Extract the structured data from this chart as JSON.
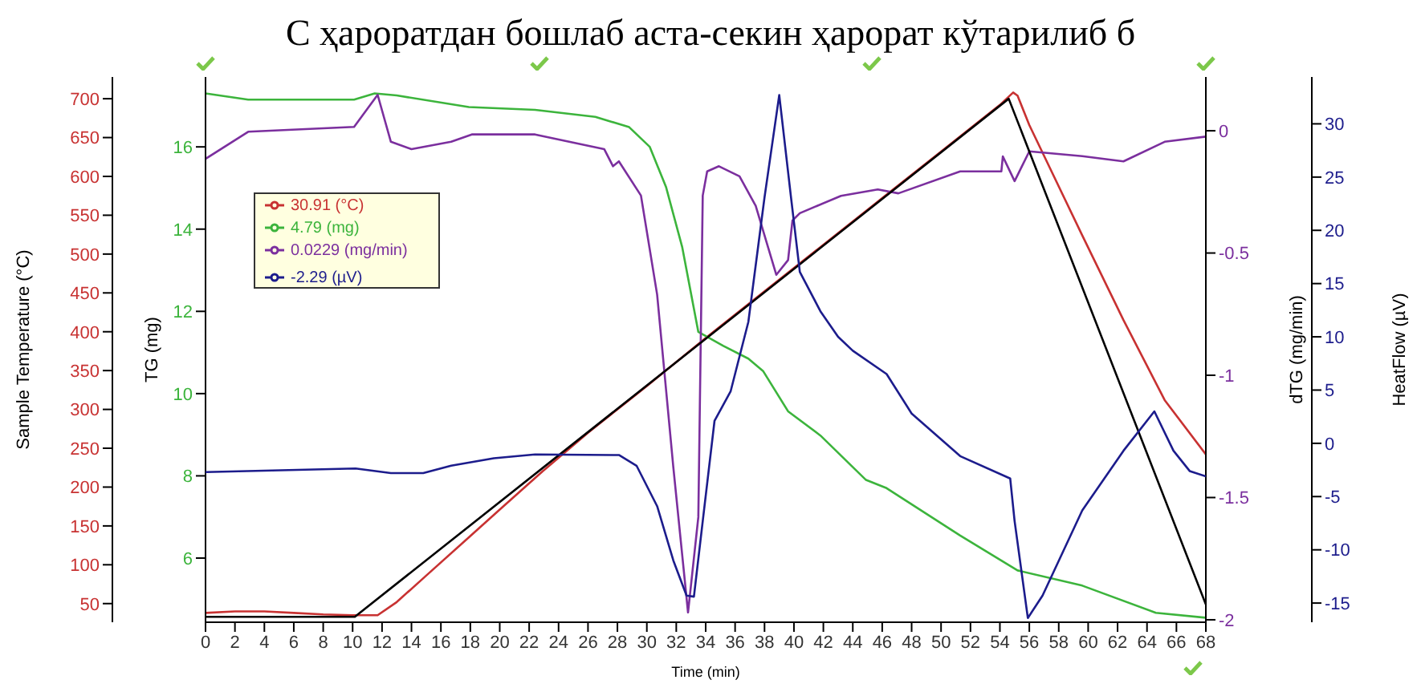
{
  "chart_data": [
    {
      "type": "line",
      "title": "С ҳароратдан бошлаб аста-секин ҳарорат кўтарилиб б",
      "xlabel": "Time (min)",
      "ylabel": "Sample Temperature (°C)",
      "y2label": "TG (mg)",
      "y3label": "dTG (mg/min)",
      "xlim": [
        0,
        68
      ],
      "xticks": [
        0,
        2,
        4,
        6,
        8,
        10,
        12,
        14,
        16,
        18,
        20,
        22,
        24,
        26,
        28,
        30,
        32,
        34,
        36,
        38,
        40,
        42,
        44,
        46,
        48,
        50,
        52,
        54,
        56,
        58,
        60,
        62,
        64,
        66,
        68
      ],
      "ylim": [
        26,
        728
      ],
      "yticks": [
        50,
        100,
        150,
        200,
        250,
        300,
        350,
        400,
        450,
        500,
        550,
        600,
        650,
        700
      ],
      "y2lim": [
        4.44,
        17.7
      ],
      "y2ticks": [
        6,
        8,
        10,
        12,
        14,
        16
      ],
      "y3lim": [
        -2.01,
        0.22
      ],
      "y3ticks": [
        -2,
        -1.5,
        -1,
        -0.5,
        0
      ],
      "legend": "top left",
      "line_style": "solid",
      "grid": false,
      "series": [
        {
          "name": "30.91 (°C)",
          "color": "#c83232",
          "axis": "y",
          "x": [
            0,
            2,
            4,
            6,
            8,
            10,
            11.7,
            13,
            15,
            18,
            20,
            22.9,
            26,
            30,
            34,
            38,
            42,
            46,
            50,
            54,
            54.9,
            55.2,
            56,
            59.6,
            62.4,
            65.2,
            68
          ],
          "values": [
            38,
            40,
            40,
            38,
            36,
            35,
            35,
            52,
            86,
            137,
            171,
            220,
            270,
            330,
            392,
            452,
            512,
            572,
            632,
            692,
            708,
            704,
            666,
            524,
            415,
            312,
            242
          ]
        },
        {
          "name": "4.79 (mg)",
          "color": "#3cb43c",
          "axis": "y2",
          "x": [
            0,
            2.9,
            10.1,
            11.5,
            13,
            17.9,
            22.4,
            26.5,
            28.8,
            30.2,
            31.3,
            32.4,
            33.5,
            35.2,
            36.9,
            37.9,
            39.6,
            41.8,
            44.9,
            46.3,
            51.3,
            55.2,
            59.6,
            64.6,
            68
          ],
          "values": [
            17.3,
            17.15,
            17.15,
            17.3,
            17.25,
            16.97,
            16.9,
            16.73,
            16.48,
            16,
            15.03,
            13.57,
            11.5,
            11.16,
            10.85,
            10.55,
            9.57,
            8.98,
            7.9,
            7.7,
            6.55,
            5.7,
            5.33,
            4.67,
            4.55
          ]
        },
        {
          "name": "0.0229 (mg/min)",
          "color": "#7b2f9e",
          "axis": "y3",
          "x": [
            0,
            2.9,
            10.1,
            11.7,
            12.6,
            14,
            16.7,
            18.1,
            22.4,
            27.1,
            27.7,
            28.1,
            29.6,
            30.7,
            31.8,
            32.8,
            33.5,
            33.8,
            34.1,
            34.9,
            36.3,
            37.4,
            38.2,
            38.8,
            39.6,
            39.9,
            40.4,
            43.2,
            45.7,
            47.1,
            51.3,
            54.1,
            54.2,
            55,
            56,
            59.6,
            62.4,
            65.2,
            68
          ],
          "values": [
            -0.115,
            -0.004,
            0.016,
            0.147,
            -0.045,
            -0.075,
            -0.045,
            -0.015,
            -0.015,
            -0.075,
            -0.145,
            -0.125,
            -0.265,
            -0.67,
            -1.376,
            -1.97,
            -1.58,
            -0.265,
            -0.166,
            -0.145,
            -0.186,
            -0.307,
            -0.468,
            -0.589,
            -0.529,
            -0.367,
            -0.337,
            -0.266,
            -0.24,
            -0.256,
            -0.166,
            -0.166,
            -0.105,
            -0.206,
            -0.084,
            -0.104,
            -0.125,
            -0.045,
            -0.024
          ]
        },
        {
          "color": "#000000",
          "axis": "y",
          "x": [
            0,
            10.15,
            54.6,
            68
          ],
          "values": [
            33,
            33,
            700,
            49
          ]
        }
      ]
    },
    {
      "type": "line",
      "ylabel": "HeatFlow (µV)",
      "xlim": [
        0,
        68
      ],
      "ylim": [
        -16.8,
        34.4
      ],
      "yticks": [
        -15,
        -10,
        -5,
        0,
        5,
        10,
        15,
        20,
        25,
        30
      ],
      "tick_labels": "y",
      "legend": "top left",
      "line_style": "solid",
      "series": [
        {
          "name": "-2.29 (µV)",
          "color": "#1c1c8c",
          "x": [
            0,
            10.2,
            12.6,
            14.8,
            16.7,
            19.6,
            22.4,
            28.1,
            29.3,
            30.7,
            31.8,
            32.7,
            33.2,
            33.8,
            34.6,
            35.7,
            36.9,
            38,
            39,
            39.8,
            40.4,
            41.8,
            43,
            44,
            46.3,
            48,
            51.3,
            54.7,
            55,
            55.9,
            56.9,
            59.6,
            62.4,
            64.5,
            65.8,
            66.9,
            68
          ],
          "values": [
            -2.7,
            -2.36,
            -2.8,
            -2.8,
            -2.1,
            -1.4,
            -1.05,
            -1.1,
            -2.1,
            -5.9,
            -11,
            -14.3,
            -14.4,
            -7.3,
            2.1,
            4.9,
            11.4,
            23.1,
            32.7,
            23.1,
            16.1,
            12.4,
            10,
            8.7,
            6.5,
            2.8,
            -1.2,
            -3.3,
            -7.3,
            -16.4,
            -14.3,
            -6.3,
            -0.7,
            3,
            -0.7,
            -2.6,
            -3.1
          ]
        }
      ]
    }
  ]
}
